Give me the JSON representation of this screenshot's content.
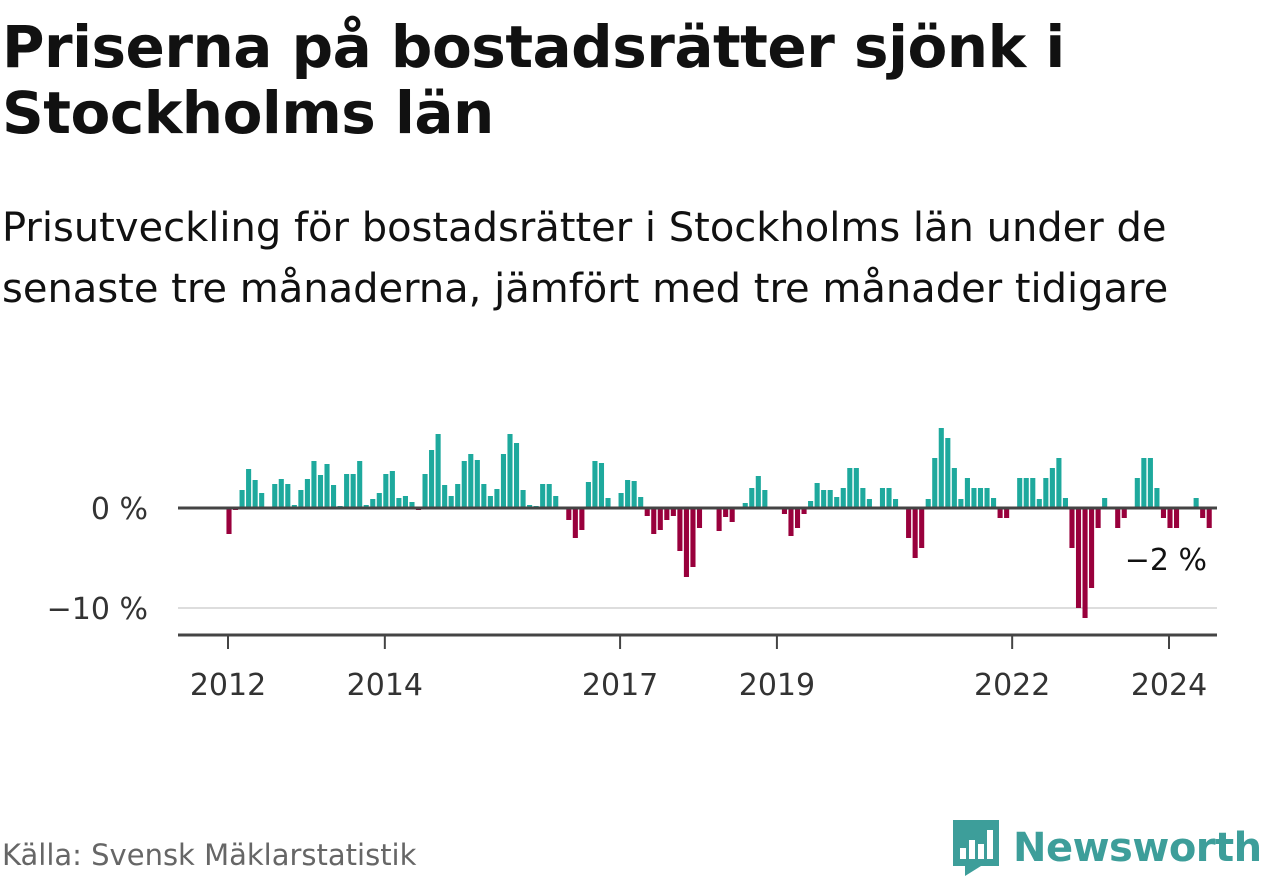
{
  "title": "Priserna på bostadsrätter sjönk i Stockholms län",
  "subtitle": "Prisutveckling för bostadsrätter i Stockholms län under de senaste tre månaderna, jämfört med tre månader tidigare",
  "source": "Källa: Svensk Mäklarstatistik",
  "logo": {
    "text": "Newsworthy",
    "icon": "bar-chart-chat-icon"
  },
  "colors": {
    "positive": "#1ea99d",
    "negative": "#99003c",
    "axis": "#444444",
    "grid": "#dddddd",
    "logo": "#3d9e9a"
  },
  "chart_data": {
    "type": "bar",
    "title": "",
    "xlabel": "",
    "ylabel": "",
    "start": "2012-01",
    "interval": "month",
    "ylim": [
      -12.5,
      8.5
    ],
    "yticks": [
      {
        "value": 0,
        "label": "0 %"
      },
      {
        "value": -10,
        "label": "−10 %"
      }
    ],
    "xticks": [
      {
        "value": 2012,
        "label": "2012"
      },
      {
        "value": 2014,
        "label": "2014"
      },
      {
        "value": 2017,
        "label": "2017"
      },
      {
        "value": 2019,
        "label": "2019"
      },
      {
        "value": 2022,
        "label": "2022"
      },
      {
        "value": 2024,
        "label": "2024"
      }
    ],
    "end_label": "−2 %",
    "values": [
      -2.6,
      -0.2,
      1.8,
      3.9,
      2.8,
      1.5,
      0.0,
      2.4,
      2.9,
      2.4,
      0.3,
      1.8,
      2.9,
      4.7,
      3.3,
      4.4,
      2.3,
      0.2,
      3.4,
      3.4,
      4.7,
      0.3,
      0.9,
      1.5,
      3.4,
      3.7,
      1.0,
      1.2,
      0.6,
      -0.2,
      3.4,
      5.8,
      7.4,
      2.3,
      1.2,
      2.4,
      4.7,
      5.4,
      4.8,
      2.4,
      1.2,
      1.9,
      5.4,
      7.4,
      6.5,
      1.8,
      0.3,
      0.2,
      2.4,
      2.4,
      1.2,
      0.1,
      -1.2,
      -3.0,
      -2.2,
      2.6,
      4.7,
      4.5,
      1.0,
      0.0,
      1.5,
      2.8,
      2.7,
      1.1,
      -0.8,
      -2.6,
      -2.2,
      -1.2,
      -0.8,
      -4.3,
      -6.9,
      -5.9,
      -2.0,
      0.0,
      0.0,
      -2.3,
      -0.9,
      -1.4,
      0.0,
      0.5,
      2.0,
      3.2,
      1.8,
      0.0,
      0.0,
      -0.6,
      -2.8,
      -2.0,
      -0.6,
      0.7,
      2.5,
      1.8,
      1.8,
      1.1,
      2.0,
      4.0,
      4.0,
      2.0,
      0.9,
      0.0,
      2.0,
      2.0,
      0.9,
      0.0,
      -3.0,
      -5.0,
      -4.0,
      0.9,
      5.0,
      8.0,
      7.0,
      4.0,
      0.9,
      3.0,
      2.0,
      2.0,
      2.0,
      1.0,
      -1.0,
      -1.0,
      0.0,
      3.0,
      3.0,
      3.0,
      0.9,
      3.0,
      4.0,
      5.0,
      1.0,
      -4.0,
      -10.0,
      -11.0,
      -8.0,
      -2.0,
      1.0,
      0.0,
      -2.0,
      -1.0,
      0.0,
      3.0,
      5.0,
      5.0,
      2.0,
      -1.0,
      -2.0,
      -2.0,
      0.0,
      0.0,
      1.0,
      -1.0,
      -2.0
    ]
  }
}
